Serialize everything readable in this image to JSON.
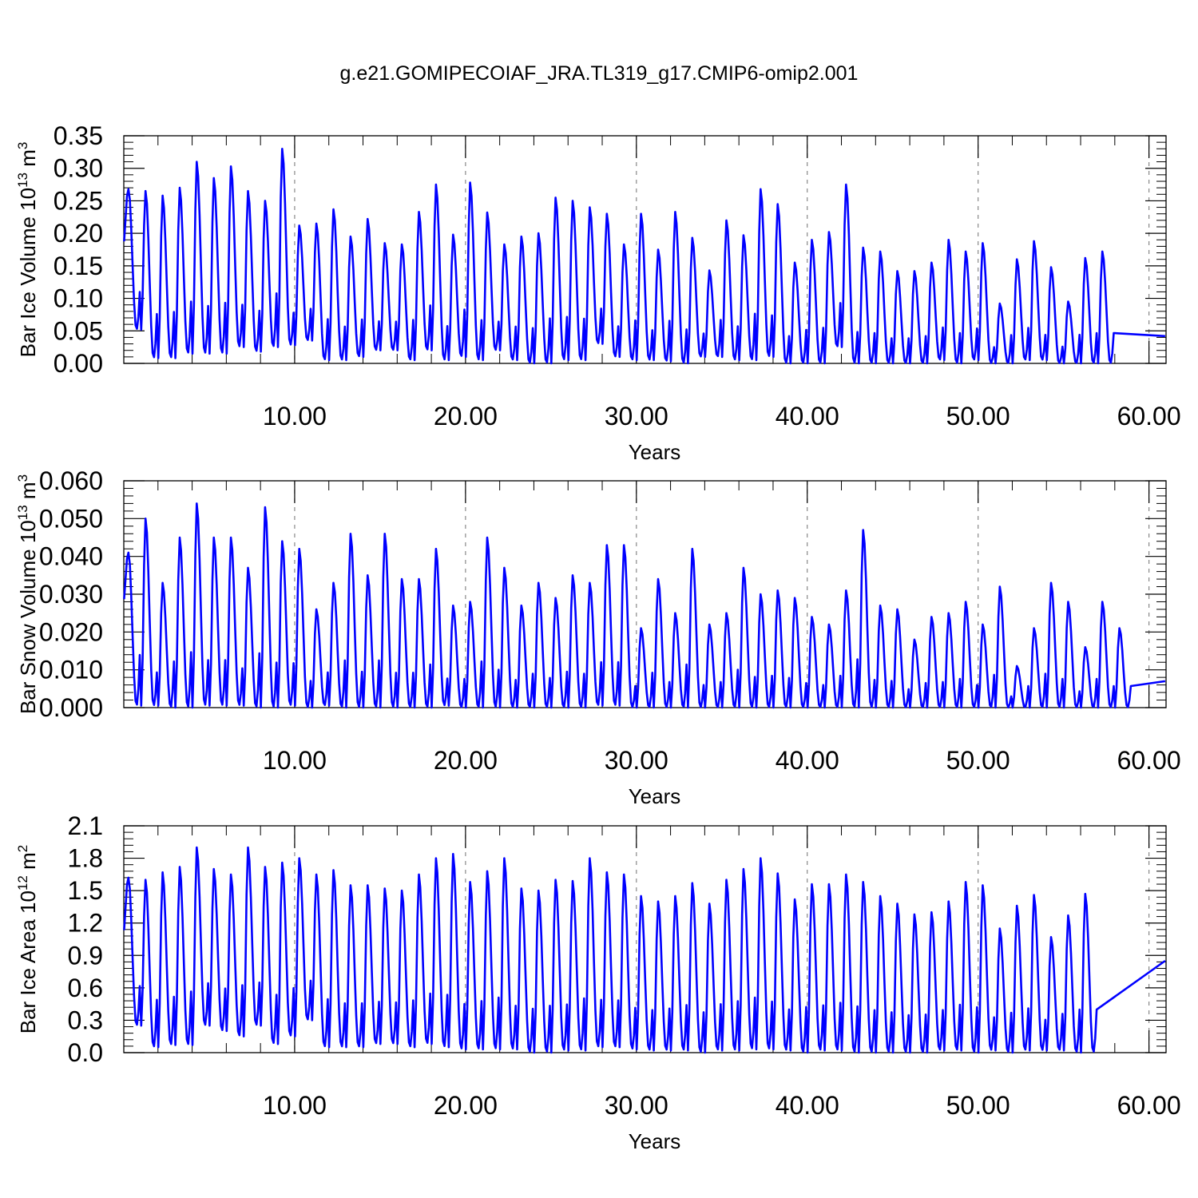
{
  "title": "g.e21.GOMIPECOIAF_JRA.TL319_g17.CMIP6-omip2.001",
  "chart_data": [
    {
      "type": "line",
      "ylabel": "Bar Ice Volume 10",
      "ylabel_exp": "13",
      "ylabel_unit": " m",
      "ylabel_unit_exp": "3",
      "xlabel": "Years",
      "xlim": [
        0,
        61
      ],
      "ylim": [
        0,
        0.35
      ],
      "ytick_values": [
        0,
        0.05,
        0.1,
        0.15,
        0.2,
        0.25,
        0.3,
        0.35
      ],
      "ytick_labels": [
        "0.00",
        "0.05",
        "0.10",
        "0.15",
        "0.20",
        "0.25",
        "0.30",
        "0.35"
      ],
      "xtick_values": [
        10,
        20,
        30,
        40,
        50,
        60
      ],
      "xtick_labels": [
        "10.00",
        "20.00",
        "30.00",
        "40.00",
        "50.00",
        "60.00"
      ],
      "color": "#0000ff",
      "grid": "x-dashed",
      "peaks": [
        0.268,
        0.265,
        0.258,
        0.27,
        0.31,
        0.285,
        0.303,
        0.265,
        0.25,
        0.33,
        0.212,
        0.215,
        0.237,
        0.195,
        0.222,
        0.185,
        0.183,
        0.233,
        0.275,
        0.198,
        0.278,
        0.232,
        0.183,
        0.195,
        0.2,
        0.255,
        0.25,
        0.24,
        0.23,
        0.183,
        0.23,
        0.175,
        0.233,
        0.193,
        0.143,
        0.22,
        0.197,
        0.268,
        0.245,
        0.155,
        0.19,
        0.202,
        0.275,
        0.178,
        0.172,
        0.142,
        0.142,
        0.155,
        0.19,
        0.172,
        0.185,
        0.092,
        0.16,
        0.188,
        0.148,
        0.095,
        0.162,
        0.172
      ],
      "troughs": [
        0.052,
        0.008,
        0.008,
        0.015,
        0.015,
        0.015,
        0.025,
        0.018,
        0.025,
        0.028,
        0.035,
        0.005,
        0.005,
        0.01,
        0.02,
        0.02,
        0.005,
        0.02,
        0.005,
        0.01,
        0.005,
        0.02,
        0.005,
        0.0,
        0.0,
        0.005,
        0.005,
        0.03,
        0.01,
        0.005,
        0.005,
        0.003,
        0.0,
        0.01,
        0.01,
        0.005,
        0.005,
        0.01,
        0.0,
        0.0,
        0.0,
        0.025,
        0.0,
        0.0,
        0.0,
        0.0,
        0.0,
        0.005,
        0.0,
        0.005,
        0.0,
        0.0,
        0.005,
        0.005,
        0.0,
        0.0,
        0.0,
        0.0
      ],
      "end_value": 0.042
    },
    {
      "type": "line",
      "ylabel": "Bar Snow Volume 10",
      "ylabel_exp": "13",
      "ylabel_unit": " m",
      "ylabel_unit_exp": "3",
      "xlabel": "Years",
      "xlim": [
        0,
        61
      ],
      "ylim": [
        0,
        0.06
      ],
      "ytick_values": [
        0,
        0.01,
        0.02,
        0.03,
        0.04,
        0.05,
        0.06
      ],
      "ytick_labels": [
        "0.000",
        "0.010",
        "0.020",
        "0.030",
        "0.040",
        "0.050",
        "0.060"
      ],
      "xtick_values": [
        10,
        20,
        30,
        40,
        50,
        60
      ],
      "xtick_labels": [
        "10.00",
        "20.00",
        "30.00",
        "40.00",
        "50.00",
        "60.00"
      ],
      "color": "#0000ff",
      "grid": "x-dashed",
      "peaks": [
        0.041,
        0.05,
        0.033,
        0.045,
        0.054,
        0.045,
        0.045,
        0.037,
        0.053,
        0.044,
        0.042,
        0.026,
        0.033,
        0.046,
        0.035,
        0.046,
        0.034,
        0.034,
        0.042,
        0.027,
        0.028,
        0.045,
        0.037,
        0.027,
        0.033,
        0.029,
        0.035,
        0.033,
        0.043,
        0.043,
        0.021,
        0.034,
        0.025,
        0.042,
        0.022,
        0.025,
        0.037,
        0.03,
        0.031,
        0.029,
        0.024,
        0.022,
        0.031,
        0.047,
        0.027,
        0.026,
        0.018,
        0.024,
        0.025,
        0.028,
        0.022,
        0.032,
        0.011,
        0.021,
        0.033,
        0.028,
        0.016,
        0.028,
        0.021
      ],
      "troughs": [
        0.0005,
        0.0005,
        0.0,
        0.0,
        0.0005,
        0.0005,
        0.0005,
        0.0,
        0.0,
        0.0005,
        0.0,
        0.0005,
        0.0,
        0.0,
        0.0,
        0.0,
        0.0,
        0.0,
        0.0005,
        0.0,
        0.0,
        0.0,
        0.0,
        0.0,
        0.0,
        0.0,
        0.0,
        0.0005,
        0.0005,
        0.0,
        0.0,
        0.0,
        0.0,
        0.0,
        0.0,
        0.0,
        0.0,
        0.0,
        0.0,
        0.0,
        0.0,
        0.0,
        0.0,
        0.0,
        0.0,
        0.0,
        0.0,
        0.0,
        0.0,
        0.0,
        0.0,
        0.0,
        0.0,
        0.0,
        0.0,
        0.0,
        0.0,
        0.0,
        0.0
      ],
      "end_value": 0.007
    },
    {
      "type": "line",
      "ylabel": "Bar Ice Area 10",
      "ylabel_exp": "12",
      "ylabel_unit": " m",
      "ylabel_unit_exp": "2",
      "xlabel": "Years",
      "xlim": [
        0,
        61
      ],
      "ylim": [
        0,
        2.1
      ],
      "ytick_values": [
        0,
        0.3,
        0.6,
        0.9,
        1.2,
        1.5,
        1.8,
        2.1
      ],
      "ytick_labels": [
        "0.0",
        "0.3",
        "0.6",
        "0.9",
        "1.2",
        "1.5",
        "1.8",
        "2.1"
      ],
      "xtick_values": [
        10,
        20,
        30,
        40,
        50,
        60
      ],
      "xtick_labels": [
        "10.00",
        "20.00",
        "30.00",
        "40.00",
        "50.00",
        "60.00"
      ],
      "color": "#0000ff",
      "grid": "x-dashed",
      "peaks": [
        1.62,
        1.6,
        1.67,
        1.72,
        1.9,
        1.7,
        1.65,
        1.9,
        1.72,
        1.76,
        1.8,
        1.65,
        1.69,
        1.55,
        1.55,
        1.52,
        1.5,
        1.65,
        1.8,
        1.84,
        1.58,
        1.68,
        1.8,
        1.52,
        1.5,
        1.6,
        1.59,
        1.8,
        1.67,
        1.65,
        1.45,
        1.4,
        1.45,
        1.57,
        1.38,
        1.6,
        1.7,
        1.8,
        1.66,
        1.42,
        1.56,
        1.56,
        1.65,
        1.58,
        1.45,
        1.38,
        1.28,
        1.3,
        1.4,
        1.58,
        1.55,
        1.15,
        1.36,
        1.46,
        1.07,
        1.27,
        1.47
      ],
      "troughs": [
        0.25,
        0.05,
        0.07,
        0.07,
        0.25,
        0.2,
        0.15,
        0.25,
        0.08,
        0.15,
        0.3,
        0.05,
        0.05,
        0.05,
        0.08,
        0.08,
        0.05,
        0.08,
        0.05,
        0.03,
        0.03,
        0.03,
        0.03,
        0.0,
        0.0,
        0.02,
        0.02,
        0.05,
        0.05,
        0.03,
        0.02,
        0.02,
        0.02,
        0.0,
        0.02,
        0.02,
        0.03,
        0.03,
        0.02,
        0.0,
        0.02,
        0.02,
        0.0,
        0.0,
        0.0,
        0.0,
        0.0,
        0.02,
        0.02,
        0.0,
        0.02,
        0.0,
        0.02,
        0.02,
        0.02,
        0.0,
        0.0
      ],
      "end_value": 0.85
    }
  ]
}
